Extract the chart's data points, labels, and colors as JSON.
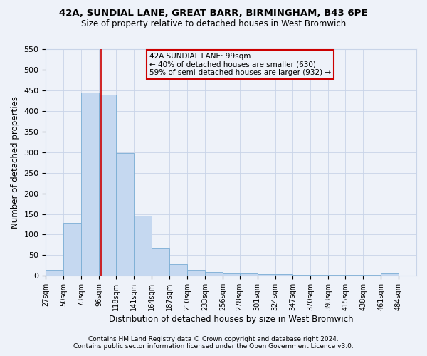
{
  "title1": "42A, SUNDIAL LANE, GREAT BARR, BIRMINGHAM, B43 6PE",
  "title2": "Size of property relative to detached houses in West Bromwich",
  "xlabel": "Distribution of detached houses by size in West Bromwich",
  "ylabel": "Number of detached properties",
  "footnote1": "Contains HM Land Registry data © Crown copyright and database right 2024.",
  "footnote2": "Contains public sector information licensed under the Open Government Licence v3.0.",
  "bin_edges": [
    27,
    50,
    73,
    96,
    118,
    141,
    164,
    187,
    210,
    233,
    256,
    278,
    301,
    324,
    347,
    370,
    393,
    415,
    438,
    461,
    484
  ],
  "bar_heights": [
    15,
    128,
    445,
    440,
    298,
    146,
    67,
    29,
    14,
    9,
    6,
    5,
    4,
    4,
    3,
    3,
    3,
    3,
    3,
    6
  ],
  "bar_color": "#c5d8f0",
  "bar_edge_color": "#7aadd4",
  "vline_x": 99,
  "vline_color": "#cc0000",
  "annotation_lines": [
    "42A SUNDIAL LANE: 99sqm",
    "← 40% of detached houses are smaller (630)",
    "59% of semi-detached houses are larger (932) →"
  ],
  "annotation_box_color": "#cc0000",
  "ylim": [
    0,
    550
  ],
  "bg_color": "#eef2f9",
  "grid_color": "#c8d4e8"
}
